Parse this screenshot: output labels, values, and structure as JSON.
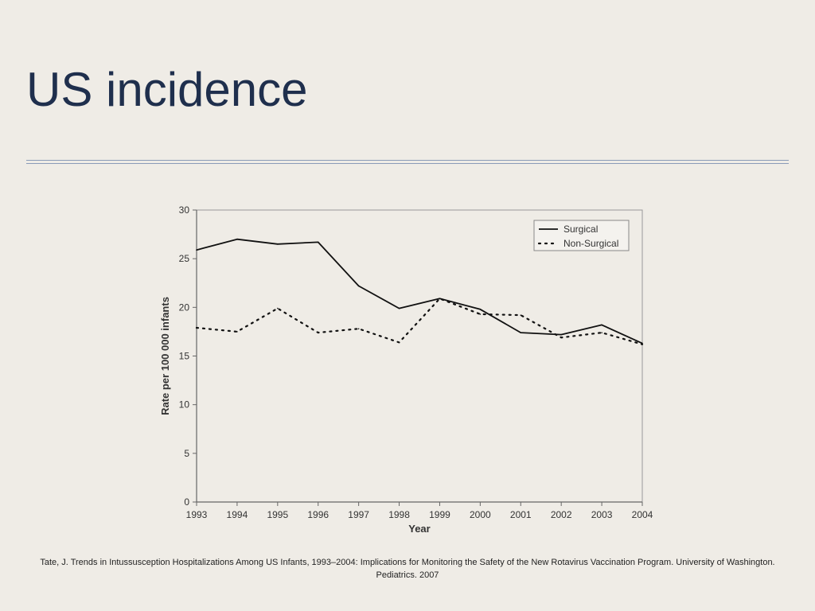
{
  "slide": {
    "title": "US incidence",
    "citation_line1": "Tate, J. Trends in Intussusception Hospitalizations Among US Infants, 1993–2004: Implications for Monitoring the Safety of the New Rotavirus Vaccination Program. University of Washington.",
    "citation_line2": "Pediatrics. 2007"
  },
  "chart_data": {
    "type": "line",
    "x": [
      1993,
      1994,
      1995,
      1996,
      1997,
      1998,
      1999,
      2000,
      2001,
      2002,
      2003,
      2004
    ],
    "series": [
      {
        "name": "Surgical",
        "style": "solid",
        "values": [
          25.9,
          27.0,
          26.5,
          26.7,
          22.2,
          19.9,
          20.9,
          19.8,
          17.4,
          17.2,
          18.2,
          16.3
        ]
      },
      {
        "name": "Non-Surgical",
        "style": "dotted",
        "values": [
          17.9,
          17.5,
          19.9,
          17.4,
          17.8,
          16.4,
          20.9,
          19.3,
          19.2,
          16.9,
          17.4,
          16.2
        ]
      }
    ],
    "xlabel": "Year",
    "ylabel": "Rate per 100 000 infants",
    "ylim": [
      0,
      30
    ],
    "yticks": [
      0,
      5,
      10,
      15,
      20,
      25,
      30
    ],
    "grid": false,
    "legend": "top-right",
    "colors": {
      "line": "#111111",
      "frame": "#999999"
    }
  }
}
